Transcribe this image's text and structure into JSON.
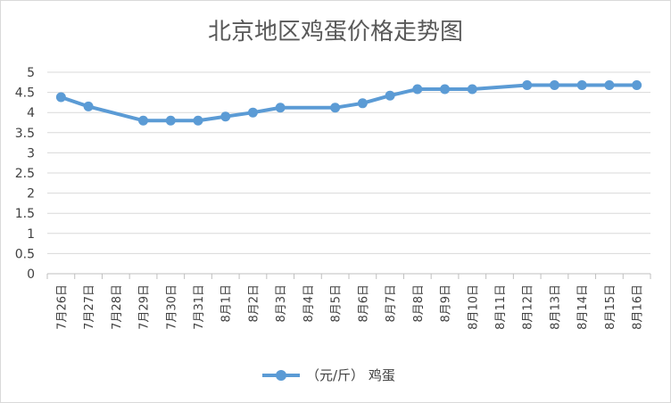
{
  "chart_data": {
    "type": "line",
    "title": "北京地区鸡蛋价格走势图",
    "xlabel": "",
    "ylabel": "",
    "categories": [
      "7月26日",
      "7月27日",
      "7月28日",
      "7月29日",
      "7月30日",
      "7月31日",
      "8月1日",
      "8月2日",
      "8月3日",
      "8月4日",
      "8月5日",
      "8月6日",
      "8月7日",
      "8月8日",
      "8月9日",
      "8月10日",
      "8月11日",
      "8月12日",
      "8月13日",
      "8月14日",
      "8月15日",
      "8月16日"
    ],
    "series": [
      {
        "name": "（元/斤） 鸡蛋",
        "color": "#5b9bd5",
        "values": [
          4.38,
          4.15,
          null,
          3.8,
          3.8,
          3.8,
          3.9,
          4.0,
          4.12,
          null,
          4.12,
          4.23,
          4.42,
          4.58,
          4.58,
          4.58,
          null,
          4.68,
          4.68,
          4.68,
          4.68,
          4.68
        ]
      }
    ],
    "y_ticks": [
      "0",
      "0.5",
      "1",
      "1.5",
      "2",
      "2.5",
      "3",
      "3.5",
      "4",
      "4.5",
      "5"
    ],
    "ylim": [
      0,
      5
    ],
    "grid": true,
    "legend_position": "bottom"
  }
}
